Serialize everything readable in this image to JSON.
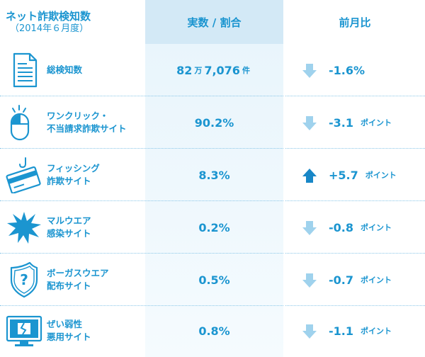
{
  "header": {
    "title": "ネット詐欺検知数",
    "period": "（2014年６月度）",
    "col_value": "実数 / 割合",
    "col_change": "前月比"
  },
  "colors": {
    "text": "#1b95d0",
    "header_fill": "#d3e9f6",
    "arrow_down": "#9fd2ed",
    "arrow_up": "#1887c7"
  },
  "rows": [
    {
      "icon": "document-icon",
      "label_line1": "総検知数",
      "label_line2": "",
      "value_num1": "82",
      "value_unit1": "万",
      "value_num2": "7,076",
      "value_unit2": "件",
      "direction": "down",
      "change": "-1.6%",
      "change_unit": ""
    },
    {
      "icon": "mouse-click-icon",
      "label_line1": "ワンクリック・",
      "label_line2": "不当請求詐欺サイト",
      "value_num1": "90.2%",
      "value_unit1": "",
      "value_num2": "",
      "value_unit2": "",
      "direction": "down",
      "change": "-3.1",
      "change_unit": "ポイント"
    },
    {
      "icon": "credit-card-hook-icon",
      "label_line1": "フィッシング",
      "label_line2": "詐欺サイト",
      "value_num1": "8.3%",
      "value_unit1": "",
      "value_num2": "",
      "value_unit2": "",
      "direction": "up",
      "change": "+5.7",
      "change_unit": "ポイント"
    },
    {
      "icon": "malware-burst-icon",
      "label_line1": "マルウエア",
      "label_line2": "感染サイト",
      "value_num1": "0.2%",
      "value_unit1": "",
      "value_num2": "",
      "value_unit2": "",
      "direction": "down",
      "change": "-0.8",
      "change_unit": "ポイント"
    },
    {
      "icon": "fake-shield-icon",
      "label_line1": "ボーガスウエア",
      "label_line2": "配布サイト",
      "value_num1": "0.5%",
      "value_unit1": "",
      "value_num2": "",
      "value_unit2": "",
      "direction": "down",
      "change": "-0.7",
      "change_unit": "ポイント"
    },
    {
      "icon": "broken-monitor-icon",
      "label_line1": "ぜい弱性",
      "label_line2": "悪用サイト",
      "value_num1": "0.8%",
      "value_unit1": "",
      "value_num2": "",
      "value_unit2": "",
      "direction": "down",
      "change": "-1.1",
      "change_unit": "ポイント"
    }
  ]
}
